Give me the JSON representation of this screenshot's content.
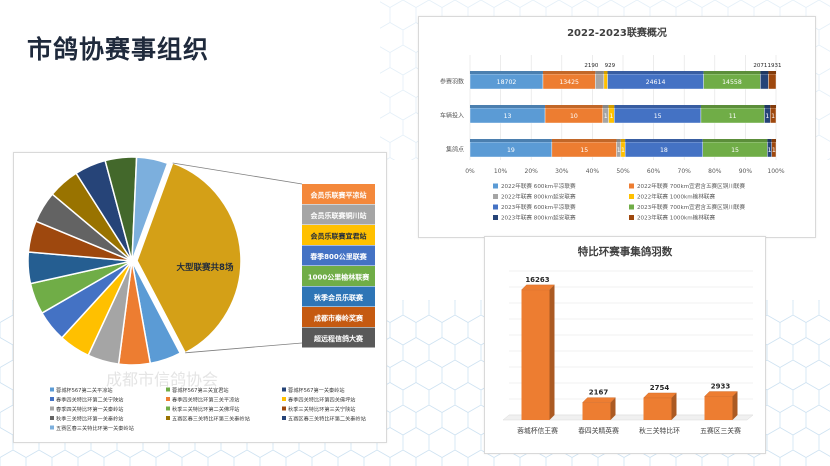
{
  "page": {
    "title": "市鸽协赛事组织"
  },
  "watermark": "成都市信鸽协会",
  "chart_data": [
    {
      "type": "pie",
      "id": "pie",
      "title": "",
      "highlight_label": "大型联赛共8场",
      "slices": [
        {
          "label": "大型联赛共8场",
          "value": 34,
          "color": "#d4a017"
        },
        {
          "label": "slice-2",
          "value": 4.5,
          "color": "#5b9bd5"
        },
        {
          "label": "slice-3",
          "value": 4.5,
          "color": "#ed7d31"
        },
        {
          "label": "slice-4",
          "value": 4.5,
          "color": "#a5a5a5"
        },
        {
          "label": "slice-5",
          "value": 4.5,
          "color": "#ffc000"
        },
        {
          "label": "slice-6",
          "value": 4.5,
          "color": "#4472c4"
        },
        {
          "label": "slice-7",
          "value": 4.5,
          "color": "#70ad47"
        },
        {
          "label": "slice-8",
          "value": 4.5,
          "color": "#255e91"
        },
        {
          "label": "slice-9",
          "value": 4.5,
          "color": "#9e480e"
        },
        {
          "label": "slice-10",
          "value": 4.5,
          "color": "#636363"
        },
        {
          "label": "slice-11",
          "value": 4.5,
          "color": "#997300"
        },
        {
          "label": "slice-12",
          "value": 4.5,
          "color": "#264478"
        },
        {
          "label": "slice-13",
          "value": 4.5,
          "color": "#43682b"
        },
        {
          "label": "slice-14",
          "value": 4.5,
          "color": "#7cafdd"
        }
      ],
      "breakdown": [
        {
          "label": "会员乐联赛平凉站",
          "color": "#f4883b"
        },
        {
          "label": "会员乐联赛铜川站",
          "color": "#a5a5a5"
        },
        {
          "label": "会员乐联赛宜君站",
          "color": "#ffc000"
        },
        {
          "label": "春季800公里联赛",
          "color": "#4472c4"
        },
        {
          "label": "1000公里榆林联赛",
          "color": "#70ad47"
        },
        {
          "label": "秋季会员乐联赛",
          "color": "#2e75b6"
        },
        {
          "label": "成都市秦岭奖赛",
          "color": "#c55a11"
        },
        {
          "label": "超远程信鸽大赛",
          "color": "#595959"
        }
      ],
      "legend": [
        {
          "label": "蓉城杯567第二关平凉站",
          "color": "#5b9bd5"
        },
        {
          "label": "蓉城杯567第三关宜君站",
          "color": "#70ad47"
        },
        {
          "label": "蓉城杯567第一关秦岭站",
          "color": "#264478"
        },
        {
          "label": "春季四关特比环第二关宁陕站",
          "color": "#4472c4"
        },
        {
          "label": "春季四关特比环第三关平凉站",
          "color": "#ed7d31"
        },
        {
          "label": "春季四关特比环第四关佛坪站",
          "color": "#ffc000"
        },
        {
          "label": "春季四关特比环第一关秦岭站",
          "color": "#a5a5a5"
        },
        {
          "label": "秋季三关特比环第二关佛坪站",
          "color": "#70ad47"
        },
        {
          "label": "秋季三关特比环第三关宁陕站",
          "color": "#9e480e"
        },
        {
          "label": "秋季三关特比环第一关秦岭站",
          "color": "#636363"
        },
        {
          "label": "五赛区春三关特比环第三关秦岭站",
          "color": "#997300"
        },
        {
          "label": "五赛区春三关特比环第二关秦岭站",
          "color": "#264478"
        },
        {
          "label": "五赛区春三关特比环第一关秦岭站",
          "color": "#7cafdd"
        }
      ]
    },
    {
      "type": "bar",
      "orientation": "horizontal",
      "stacked": "percent",
      "id": "stacked",
      "title": "2022-2023联赛概况",
      "categories": [
        "参赛羽数",
        "车辆投入",
        "集鸽点"
      ],
      "xlim": [
        0,
        100
      ],
      "xticks": [
        "0%",
        "10%",
        "20%",
        "30%",
        "40%",
        "50%",
        "60%",
        "70%",
        "80%",
        "90%",
        "100%"
      ],
      "series": [
        {
          "name": "2022年联赛 600km平凉联赛",
          "color": "#5b9bd5",
          "values": [
            18702,
            13,
            19
          ]
        },
        {
          "name": "2022年联赛 700km宜君含五赛区铜川联赛",
          "color": "#ed7d31",
          "values": [
            13425,
            10,
            15
          ]
        },
        {
          "name": "2022年联赛 800km延安联赛",
          "color": "#a5a5a5",
          "values": [
            2190,
            1,
            1
          ]
        },
        {
          "name": "2022年联赛 1000km榆林联赛",
          "color": "#ffc000",
          "values": [
            929,
            1,
            1
          ]
        },
        {
          "name": "2023年联赛 600km平凉联赛",
          "color": "#4472c4",
          "values": [
            24614,
            15,
            18
          ]
        },
        {
          "name": "2023年联赛 700km宜君含五赛区铜川联赛",
          "color": "#70ad47",
          "values": [
            14558,
            11,
            15
          ]
        },
        {
          "name": "2023年联赛 800km延安联赛",
          "color": "#264478",
          "values": [
            2071,
            1,
            1
          ]
        },
        {
          "name": "2023年联赛 1000km榆林联赛",
          "color": "#9e480e",
          "values": [
            1931,
            1,
            1
          ]
        }
      ]
    },
    {
      "type": "bar",
      "id": "column",
      "title": "特比环赛事集鸽羽数",
      "categories": [
        "蓉城杯信王赛",
        "春四关精英赛",
        "秋三关特比环",
        "五赛区三关赛"
      ],
      "values": [
        16263,
        2167,
        2754,
        2933
      ],
      "ylim": [
        0,
        18000
      ],
      "color": "#ed7d31"
    }
  ]
}
